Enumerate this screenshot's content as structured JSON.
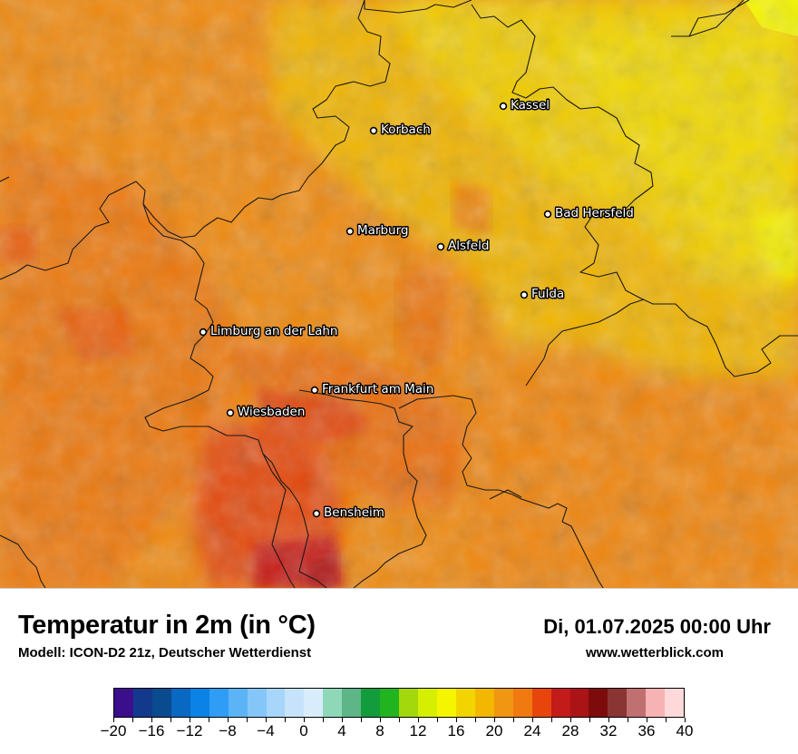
{
  "map": {
    "cities": [
      {
        "name": "Kassel"
      },
      {
        "name": "Korbach"
      },
      {
        "name": "Bad Hersfeld"
      },
      {
        "name": "Marburg"
      },
      {
        "name": "Alsfeld"
      },
      {
        "name": "Fulda"
      },
      {
        "name": "Limburg an der Lahn"
      },
      {
        "name": "Frankfurt am Main"
      },
      {
        "name": "Wiesbaden"
      },
      {
        "name": "Bensheim"
      }
    ]
  },
  "footer": {
    "title": "Temperatur in 2m (in °C)",
    "model": "Modell: ICON-D2 21z, Deutscher Wetterdienst",
    "datetime": "Di, 01.07.2025 00:00 Uhr",
    "website": "www.wetterblick.com"
  },
  "colorbar": {
    "min": -20,
    "max": 40,
    "step": 2,
    "tick_labels": [
      "−20",
      "−16",
      "−12",
      "−8",
      "−4",
      "0",
      "4",
      "8",
      "12",
      "16",
      "20",
      "24",
      "28",
      "32",
      "36",
      "40"
    ],
    "colors": [
      "#3b0f8c",
      "#12398c",
      "#0a4a8f",
      "#0868c2",
      "#0a82e6",
      "#2f9df5",
      "#5cb4f7",
      "#85c6f8",
      "#a8d5fa",
      "#c6e3fb",
      "#d9ecfc",
      "#8ed8b8",
      "#5db588",
      "#129c3c",
      "#21b41e",
      "#a3d80c",
      "#d6ee00",
      "#f5f500",
      "#f2d500",
      "#f3b700",
      "#f09612",
      "#f07910",
      "#e8450c",
      "#c31a1a",
      "#ab1416",
      "#7e0b0b",
      "#8a3434",
      "#c07070",
      "#f7b3b3",
      "#ffd9d9"
    ]
  }
}
